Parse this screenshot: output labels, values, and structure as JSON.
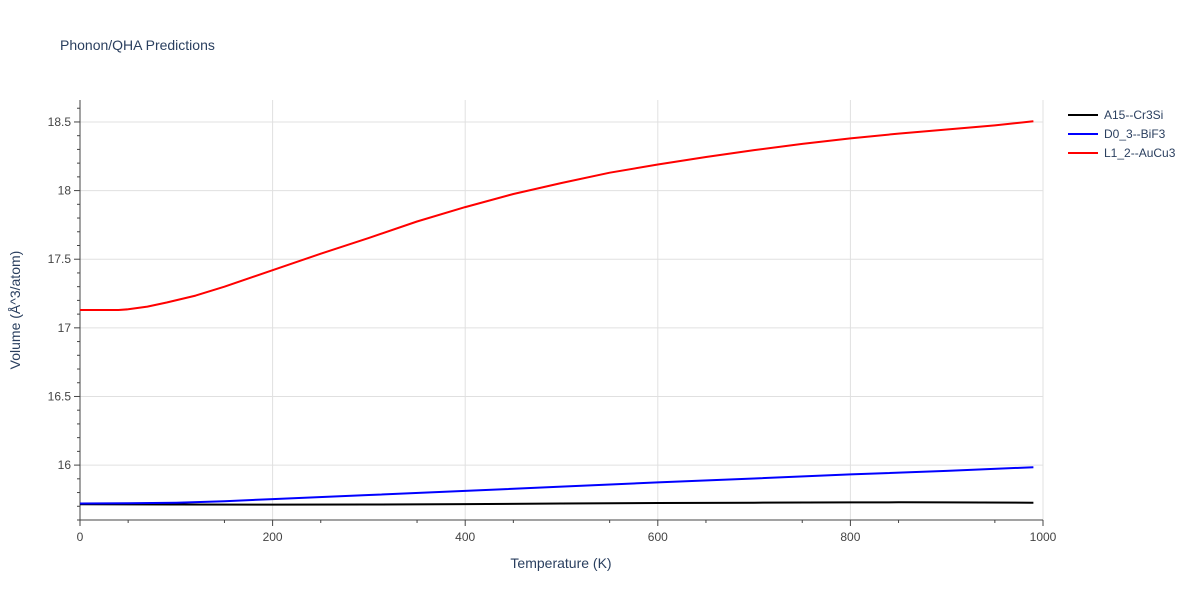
{
  "chart_data": {
    "type": "line",
    "title": "Phonon/QHA Predictions",
    "xlabel": "Temperature (K)",
    "ylabel": "Volume (Å^3/atom)",
    "xlim": [
      0,
      1000
    ],
    "ylim": [
      15.6,
      18.66
    ],
    "xticks": [
      0,
      200,
      400,
      600,
      800,
      1000
    ],
    "xtick_labels": [
      "0",
      "200",
      "400",
      "600",
      "800",
      "1000"
    ],
    "yticks": [
      16,
      16.5,
      17,
      17.5,
      18,
      18.5
    ],
    "ytick_labels": [
      "16",
      "16.5",
      "17",
      "17.5",
      "18",
      "18.5"
    ],
    "grid": true,
    "legend_position": "top-right",
    "series": [
      {
        "name": "A15--Cr3Si",
        "color": "#000000",
        "x": [
          0,
          100,
          200,
          300,
          400,
          500,
          600,
          700,
          800,
          850,
          900,
          990
        ],
        "y": [
          15.715,
          15.713,
          15.712,
          15.713,
          15.716,
          15.72,
          15.724,
          15.726,
          15.728,
          15.729,
          15.728,
          15.726
        ]
      },
      {
        "name": "D0_3--BiF3",
        "color": "#0000ff",
        "x": [
          0,
          50,
          100,
          150,
          200,
          300,
          400,
          500,
          600,
          700,
          800,
          900,
          990
        ],
        "y": [
          15.72,
          15.722,
          15.726,
          15.737,
          15.752,
          15.782,
          15.812,
          15.843,
          15.874,
          15.902,
          15.932,
          15.958,
          15.985
        ]
      },
      {
        "name": "L1_2--AuCu3",
        "color": "#ff0000",
        "x": [
          0,
          20,
          40,
          50,
          70,
          90,
          120,
          150,
          200,
          250,
          300,
          350,
          400,
          450,
          500,
          550,
          600,
          650,
          700,
          750,
          800,
          850,
          900,
          950,
          990
        ],
        "y": [
          17.13,
          17.13,
          17.13,
          17.135,
          17.155,
          17.185,
          17.235,
          17.3,
          17.42,
          17.54,
          17.655,
          17.775,
          17.88,
          17.975,
          18.055,
          18.13,
          18.19,
          18.245,
          18.295,
          18.34,
          18.38,
          18.415,
          18.445,
          18.475,
          18.505
        ]
      }
    ]
  }
}
